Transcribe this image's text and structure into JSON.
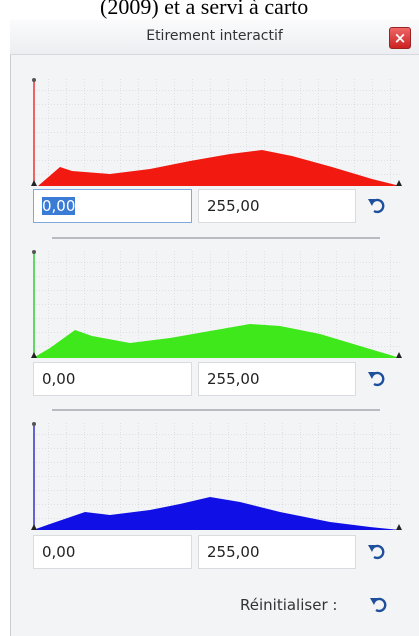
{
  "page_text": "(2009) et a servi à carto",
  "dialog": {
    "title": "Etirement interactif",
    "channels": [
      {
        "min": "0,00",
        "max": "255,00"
      },
      {
        "min": "0,00",
        "max": "255,00"
      },
      {
        "min": "0,00",
        "max": "255,00"
      }
    ],
    "reset_label": "Réinitialiser :"
  }
}
